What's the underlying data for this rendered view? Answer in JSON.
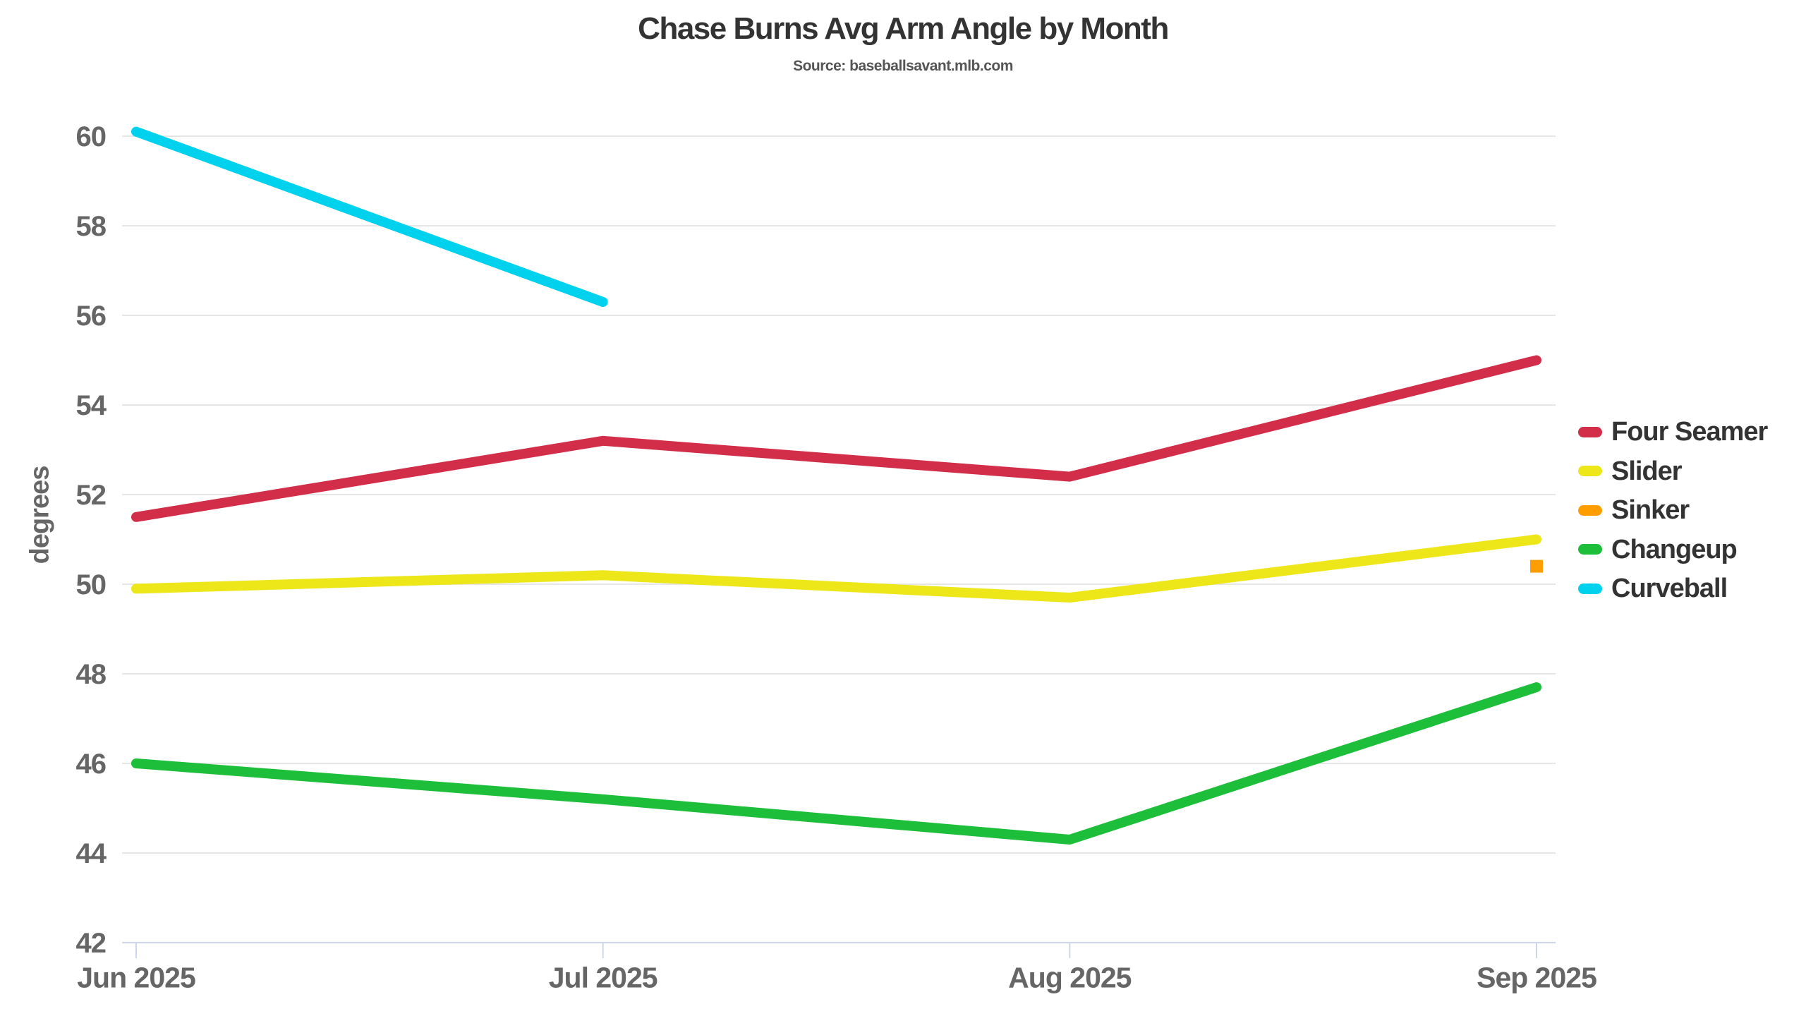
{
  "chart": {
    "title": "Chase Burns Avg Arm Angle by Month",
    "subtitle": "Source: baseballsavant.mlb.com",
    "y_axis_title": "degrees"
  },
  "chart_data": {
    "type": "line",
    "title": "Chase Burns Avg Arm Angle by Month",
    "subtitle": "Source: baseballsavant.mlb.com",
    "xlabel": "",
    "ylabel": "degrees",
    "categories": [
      "Jun 2025",
      "Jul 2025",
      "Aug 2025",
      "Sep 2025"
    ],
    "y_ticks": [
      42,
      44,
      46,
      48,
      50,
      52,
      54,
      56,
      58,
      60
    ],
    "ylim": [
      42,
      61.5
    ],
    "grid": true,
    "legend_position": "right",
    "series": [
      {
        "name": "Four Seamer",
        "color": "#D22D49",
        "style": "line",
        "values": [
          51.5,
          53.2,
          52.4,
          55.0
        ]
      },
      {
        "name": "Slider",
        "color": "#EDE719",
        "style": "line",
        "values": [
          49.9,
          50.2,
          49.7,
          51.0
        ]
      },
      {
        "name": "Sinker",
        "color": "#FE9D00",
        "style": "point",
        "values": [
          null,
          null,
          null,
          50.4
        ]
      },
      {
        "name": "Changeup",
        "color": "#1DBE3A",
        "style": "line",
        "values": [
          46.0,
          45.2,
          44.3,
          47.7
        ]
      },
      {
        "name": "Curveball",
        "color": "#00D1ED",
        "style": "line",
        "values": [
          60.1,
          56.3,
          null,
          null
        ]
      }
    ],
    "colors": {
      "axis_line": "#ccd6eb",
      "grid_line": "#e6e6e6",
      "tick_text": "#666666",
      "title_text": "#333333",
      "background": "#ffffff"
    }
  }
}
